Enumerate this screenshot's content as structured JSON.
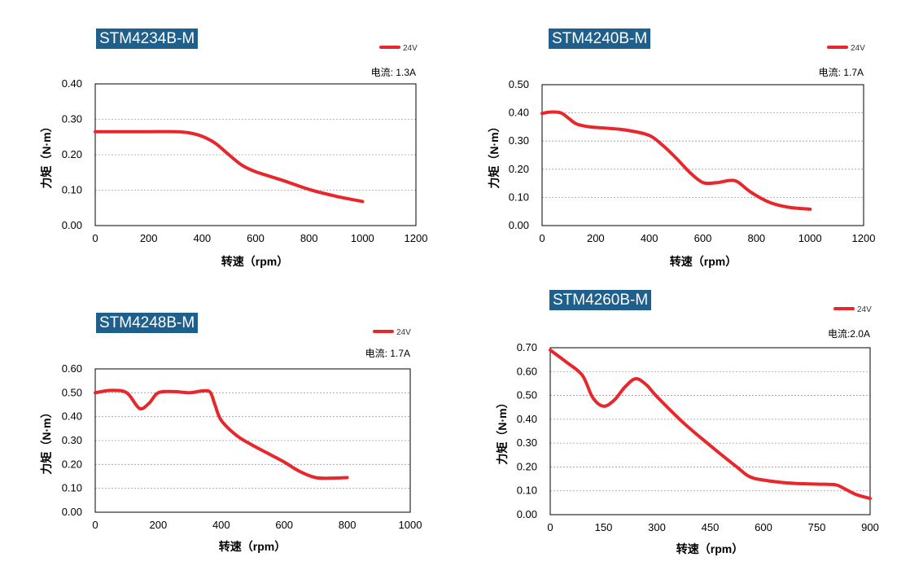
{
  "chart_data": [
    {
      "type": "line",
      "title": "STM4234B-M",
      "legend": "24V",
      "current_label": "电流: 1.3A",
      "xlabel": "转速（rpm）",
      "ylabel": "力矩（N·m）",
      "x_ticks": [
        0,
        200,
        400,
        600,
        800,
        1000,
        1200
      ],
      "y_ticks": [
        "0.00",
        "0.10",
        "0.20",
        "0.30",
        "0.40"
      ],
      "xlim": [
        0,
        1200
      ],
      "ylim": [
        0,
        0.4
      ],
      "color": "#e8272d",
      "series": [
        {
          "name": "24V",
          "x": [
            0,
            100,
            200,
            300,
            350,
            400,
            450,
            500,
            550,
            600,
            700,
            800,
            900,
            1000
          ],
          "y": [
            0.265,
            0.265,
            0.265,
            0.265,
            0.262,
            0.252,
            0.232,
            0.2,
            0.17,
            0.152,
            0.128,
            0.102,
            0.083,
            0.068
          ]
        }
      ]
    },
    {
      "type": "line",
      "title": "STM4240B-M",
      "legend": "24V",
      "current_label": "电流: 1.7A",
      "xlabel": "转速（rpm）",
      "ylabel": "力矩（N·m）",
      "x_ticks": [
        0,
        200,
        400,
        600,
        800,
        1000,
        1200
      ],
      "y_ticks": [
        "0.00",
        "0.10",
        "0.20",
        "0.30",
        "0.40",
        "0.50"
      ],
      "xlim": [
        0,
        1200
      ],
      "ylim": [
        0,
        0.5
      ],
      "color": "#e8272d",
      "series": [
        {
          "name": "24V",
          "x": [
            0,
            30,
            70,
            100,
            130,
            180,
            250,
            320,
            400,
            450,
            500,
            550,
            600,
            650,
            700,
            730,
            780,
            850,
            920,
            1000
          ],
          "y": [
            0.398,
            0.403,
            0.4,
            0.38,
            0.36,
            0.35,
            0.345,
            0.338,
            0.32,
            0.285,
            0.24,
            0.19,
            0.153,
            0.152,
            0.16,
            0.155,
            0.118,
            0.082,
            0.065,
            0.058
          ]
        }
      ]
    },
    {
      "type": "line",
      "title": "STM4248B-M",
      "legend": "24V",
      "current_label": "电流: 1.7A",
      "xlabel": "转速（rpm）",
      "ylabel": "力矩（N·m）",
      "x_ticks": [
        0,
        200,
        400,
        600,
        800,
        1000
      ],
      "y_ticks": [
        "0.00",
        "0.10",
        "0.20",
        "0.30",
        "0.40",
        "0.50",
        "0.60"
      ],
      "xlim": [
        0,
        1000
      ],
      "ylim": [
        0,
        0.6
      ],
      "color": "#e8272d",
      "series": [
        {
          "name": "24V",
          "x": [
            0,
            50,
            100,
            140,
            170,
            200,
            250,
            300,
            340,
            365,
            380,
            400,
            450,
            500,
            550,
            600,
            650,
            700,
            750,
            800
          ],
          "y": [
            0.5,
            0.51,
            0.5,
            0.435,
            0.455,
            0.5,
            0.505,
            0.5,
            0.508,
            0.502,
            0.45,
            0.385,
            0.32,
            0.28,
            0.245,
            0.21,
            0.17,
            0.145,
            0.143,
            0.145
          ]
        }
      ]
    },
    {
      "type": "line",
      "title": "STM4260B-M",
      "legend": "24V",
      "current_label": "电流:2.0A",
      "xlabel": "转速（rpm）",
      "ylabel": "力矩（N·m）",
      "x_ticks": [
        0,
        150,
        300,
        450,
        600,
        750,
        900
      ],
      "y_ticks": [
        "0.00",
        "0.10",
        "0.20",
        "0.30",
        "0.40",
        "0.50",
        "0.60",
        "0.70"
      ],
      "xlim": [
        0,
        900
      ],
      "ylim": [
        0,
        0.7
      ],
      "color": "#e8272d",
      "series": [
        {
          "name": "24V",
          "x": [
            0,
            45,
            90,
            120,
            150,
            180,
            210,
            240,
            270,
            300,
            375,
            450,
            525,
            560,
            600,
            675,
            750,
            800,
            820,
            860,
            900
          ],
          "y": [
            0.69,
            0.64,
            0.585,
            0.49,
            0.455,
            0.48,
            0.535,
            0.57,
            0.545,
            0.495,
            0.385,
            0.29,
            0.2,
            0.16,
            0.145,
            0.132,
            0.128,
            0.126,
            0.115,
            0.085,
            0.068
          ]
        }
      ]
    }
  ]
}
